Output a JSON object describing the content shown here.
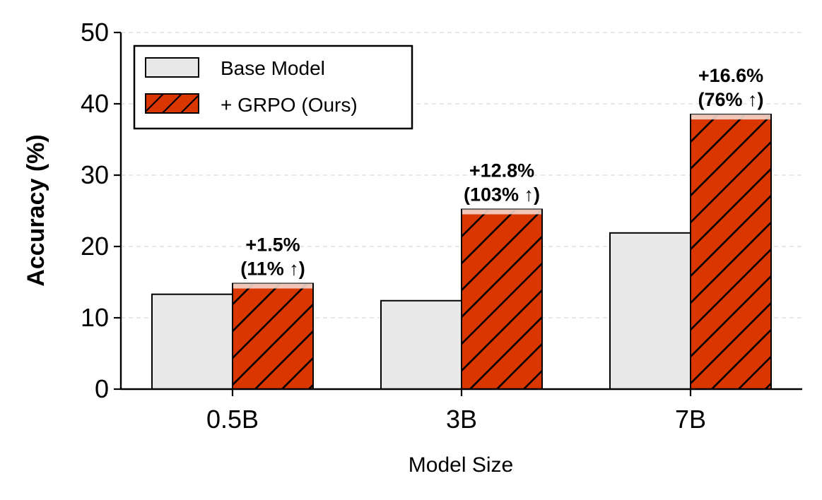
{
  "chart_data": {
    "type": "bar",
    "title": "",
    "xlabel": "Model Size",
    "ylabel": "Accuracy (%)",
    "categories": [
      "0.5B",
      "3B",
      "7B"
    ],
    "ylim": [
      0,
      50
    ],
    "yticks": [
      0,
      10,
      20,
      30,
      40,
      50
    ],
    "grid": "horizontal dashed",
    "legend_position": "top-left",
    "series": [
      {
        "name": "Base Model",
        "values": [
          13.3,
          12.4,
          21.9
        ],
        "color": "#e8e8e8",
        "hatch": "none"
      },
      {
        "name": "+ GRPO (Ours)",
        "values": [
          14.8,
          25.2,
          38.5
        ],
        "color": "#d93600",
        "hatch": "diagonal"
      }
    ],
    "annotations": [
      {
        "line1": "+1.5%",
        "line2": "(11% ↑)"
      },
      {
        "line1": "+12.8%",
        "line2": "(103% ↑)"
      },
      {
        "line1": "+16.6%",
        "line2": "(76% ↑)"
      }
    ]
  }
}
